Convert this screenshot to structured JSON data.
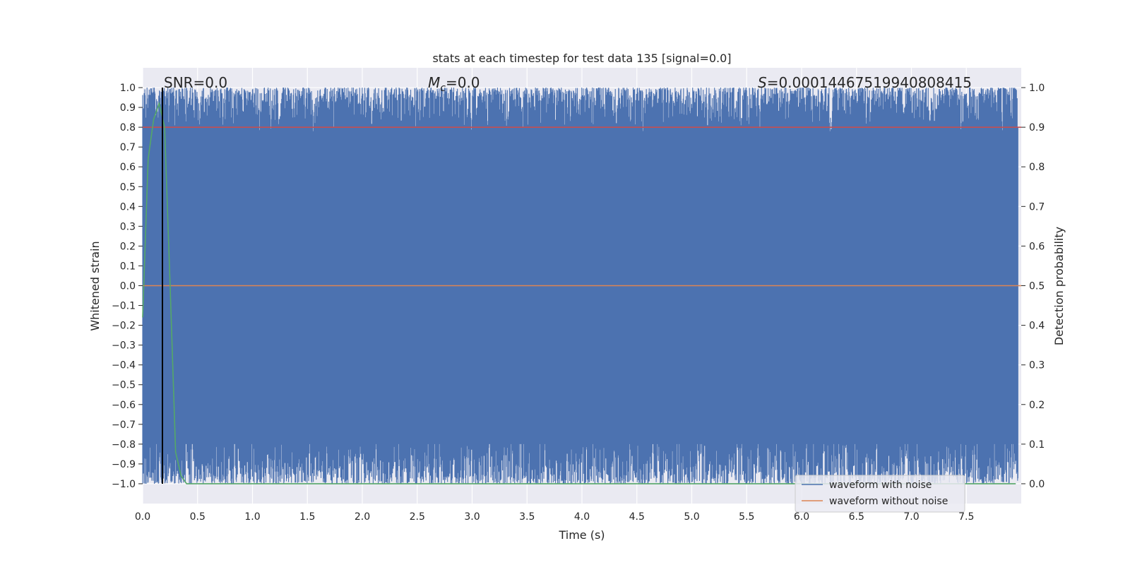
{
  "chart_data": {
    "type": "line",
    "title": "stats at each timestep for test data 135 [signal=0.0]",
    "xlabel": "Time (s)",
    "ylabel": "Whitened strain",
    "y2label": "Detection probability",
    "xlim": [
      0.0,
      8.0
    ],
    "ylim": [
      -1.1,
      1.1
    ],
    "y2lim": [
      -0.05,
      1.05
    ],
    "x_ticks": [
      0.0,
      0.5,
      1.0,
      1.5,
      2.0,
      2.5,
      3.0,
      3.5,
      4.0,
      4.5,
      5.0,
      5.5,
      6.0,
      6.5,
      7.0,
      7.5
    ],
    "x_tick_labels": [
      "0.0",
      "0.5",
      "1.0",
      "1.5",
      "2.0",
      "2.5",
      "3.0",
      "3.5",
      "4.0",
      "4.5",
      "5.0",
      "5.5",
      "6.0",
      "6.5",
      "7.0",
      "7.5"
    ],
    "y_ticks": [
      1.0,
      0.9,
      0.8,
      0.7,
      0.6,
      0.5,
      0.4,
      0.3,
      0.2,
      0.1,
      0.0,
      -0.1,
      -0.2,
      -0.3,
      -0.4,
      -0.5,
      -0.6,
      -0.7,
      -0.8,
      -0.9,
      -1.0
    ],
    "y_tick_labels": [
      "1.0",
      "0.9",
      "0.8",
      "0.7",
      "0.6",
      "0.5",
      "0.4",
      "0.3",
      "0.2",
      "0.1",
      "0.0",
      "−0.1",
      "−0.2",
      "−0.3",
      "−0.4",
      "−0.5",
      "−0.6",
      "−0.7",
      "−0.8",
      "−0.9",
      "−1.0"
    ],
    "y2_ticks": [
      1.0,
      0.9,
      0.8,
      0.7,
      0.6,
      0.5,
      0.4,
      0.3,
      0.2,
      0.1,
      0.0
    ],
    "y2_tick_labels": [
      "1.0",
      "0.9",
      "0.8",
      "0.7",
      "0.6",
      "0.5",
      "0.4",
      "0.3",
      "0.2",
      "0.1",
      "0.0"
    ],
    "grid": true,
    "legend_position": "lower-right",
    "annotations": {
      "snr": "SNR=0.0",
      "mc_symbol": "M",
      "mc_sub": "c",
      "mc_value": "=0.0",
      "s_symbol": "S",
      "s_value": "=0.00014467519940808415"
    },
    "series": [
      {
        "name": "waveform with noise",
        "color": "#4c72b0",
        "description_of_values": "dense noise filling roughly -1.0 to 1.0 across 0–8 s"
      },
      {
        "name": "waveform without noise",
        "color": "#dd8452",
        "x": [
          0.0,
          8.0
        ],
        "y": [
          0.0,
          0.0
        ]
      },
      {
        "axis": "right",
        "color": "#55a868",
        "x": [
          0.0,
          0.05,
          0.1,
          0.15,
          0.2,
          0.25,
          0.3,
          0.35,
          0.4,
          1.0,
          2.0,
          3.0,
          4.0,
          5.0,
          6.0,
          7.0,
          7.95
        ],
        "y": [
          0.42,
          0.82,
          0.92,
          0.96,
          0.9,
          0.5,
          0.08,
          0.02,
          0.0,
          0.0,
          0.0,
          0.0,
          0.0,
          0.0,
          0.0,
          0.0,
          0.0
        ]
      },
      {
        "axis": "right",
        "color": "#c44e52",
        "x": [
          0.0,
          8.0
        ],
        "y": [
          0.9,
          0.9
        ]
      }
    ],
    "vertical_line_x": 0.18,
    "vertical_line_color": "#000000"
  }
}
